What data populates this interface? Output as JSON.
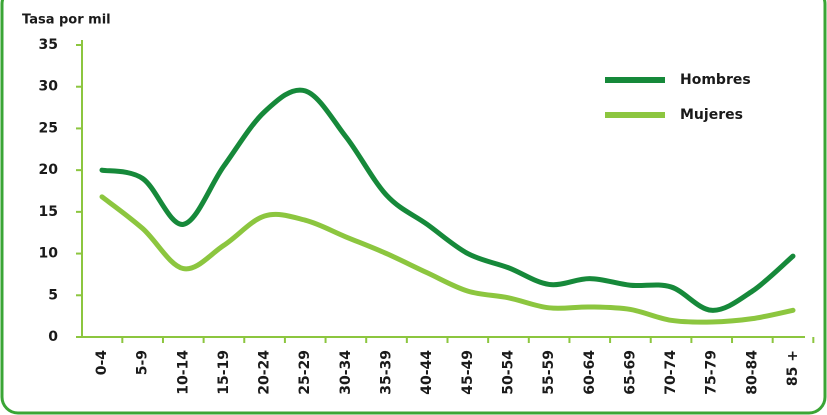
{
  "chart_data": {
    "type": "line",
    "y_label": "Tasa por mil",
    "categories": [
      "0-4",
      "5-9",
      "10-14",
      "15-19",
      "20-24",
      "25-29",
      "30-34",
      "35-39",
      "40-44",
      "45-49",
      "50-54",
      "55-59",
      "60-64",
      "65-69",
      "70-74",
      "75-79",
      "80-84",
      "85 +"
    ],
    "series": [
      {
        "name": "Hombres",
        "color": "#16893a",
        "values": [
          20,
          19,
          13.5,
          20.5,
          27,
          29.5,
          24,
          17,
          13.5,
          10,
          8.3,
          6.3,
          7,
          6.2,
          6,
          3.2,
          5.5,
          9.7
        ]
      },
      {
        "name": "Mujeres",
        "color": "#8cc63f",
        "values": [
          16.8,
          13,
          8.2,
          11,
          14.5,
          14,
          12,
          10,
          7.7,
          5.5,
          4.7,
          3.5,
          3.6,
          3.3,
          2,
          1.8,
          2.2,
          3.2
        ]
      }
    ],
    "ylim": [
      0,
      35
    ],
    "yticks": [
      0,
      5,
      10,
      15,
      20,
      25,
      30,
      35
    ],
    "legend": "upper right"
  }
}
